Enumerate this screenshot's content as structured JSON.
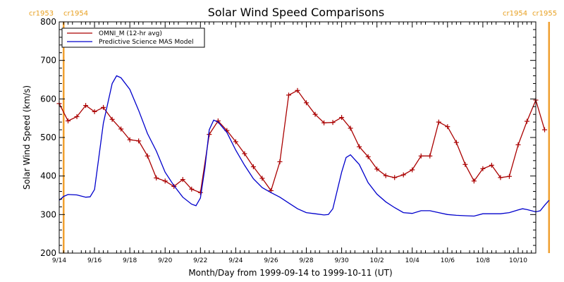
{
  "chart_data": {
    "type": "line",
    "title": "Solar Wind Speed Comparisons",
    "xlabel": "Month/Day from 1999-09-14 to 1999-10-11 (UT)",
    "ylabel": "Solar Wind Speed (km/s)",
    "xlim": [
      "1999-09-14",
      "1999-10-11"
    ],
    "ylim": [
      200,
      800
    ],
    "yticks": [
      200,
      300,
      400,
      500,
      600,
      700,
      800
    ],
    "xtick_labels": [
      "9/14",
      "9/16",
      "9/18",
      "9/20",
      "9/22",
      "9/24",
      "9/26",
      "9/28",
      "9/30",
      "10/2",
      "10/4",
      "10/6",
      "10/8",
      "10/10"
    ],
    "xtick_dates": [
      "1999-09-14",
      "1999-09-16",
      "1999-09-18",
      "1999-09-20",
      "1999-09-22",
      "1999-09-24",
      "1999-09-26",
      "1999-09-28",
      "1999-09-30",
      "1999-10-02",
      "1999-10-04",
      "1999-10-06",
      "1999-10-08",
      "1999-10-10"
    ],
    "legend_position": "top-left",
    "carrington_markers": [
      {
        "date": "1999-09-14 06:00",
        "label_left": "cr1953",
        "label_right": "cr1954",
        "color": "#f0a030"
      },
      {
        "date": "1999-10-11 18:00",
        "label_left": "cr1954",
        "label_right": "cr1955",
        "color": "#f0a030"
      }
    ],
    "series": [
      {
        "name": "OMNI_M (12-hr avg)",
        "color": "#aa0000",
        "marker": "plus",
        "points": [
          [
            "1999-09-14 00:00",
            588
          ],
          [
            "1999-09-14 12:00",
            543
          ],
          [
            "1999-09-15 00:00",
            554
          ],
          [
            "1999-09-15 12:00",
            583
          ],
          [
            "1999-09-16 00:00",
            567
          ],
          [
            "1999-09-16 12:00",
            578
          ],
          [
            "1999-09-17 00:00",
            547
          ],
          [
            "1999-09-17 12:00",
            522
          ],
          [
            "1999-09-18 00:00",
            494
          ],
          [
            "1999-09-18 12:00",
            491
          ],
          [
            "1999-09-19 00:00",
            452
          ],
          [
            "1999-09-19 12:00",
            395
          ],
          [
            "1999-09-20 00:00",
            387
          ],
          [
            "1999-09-20 12:00",
            373
          ],
          [
            "1999-09-21 00:00",
            391
          ],
          [
            "1999-09-21 12:00",
            366
          ],
          [
            "1999-09-22 00:00",
            357
          ],
          [
            "1999-09-22 12:00",
            508
          ],
          [
            "1999-09-23 00:00",
            543
          ],
          [
            "1999-09-23 12:00",
            518
          ],
          [
            "1999-09-24 00:00",
            489
          ],
          [
            "1999-09-24 12:00",
            458
          ],
          [
            "1999-09-25 00:00",
            424
          ],
          [
            "1999-09-25 12:00",
            394
          ],
          [
            "1999-09-26 00:00",
            362
          ],
          [
            "1999-09-26 12:00",
            437
          ],
          [
            "1999-09-27 00:00",
            610
          ],
          [
            "1999-09-27 12:00",
            622
          ],
          [
            "1999-09-28 00:00",
            590
          ],
          [
            "1999-09-28 12:00",
            560
          ],
          [
            "1999-09-29 00:00",
            538
          ],
          [
            "1999-09-29 12:00",
            539
          ],
          [
            "1999-09-30 00:00",
            552
          ],
          [
            "1999-09-30 12:00",
            524
          ],
          [
            "1999-10-01 00:00",
            476
          ],
          [
            "1999-10-01 12:00",
            450
          ],
          [
            "1999-10-02 00:00",
            418
          ],
          [
            "1999-10-02 12:00",
            401
          ],
          [
            "1999-10-03 00:00",
            396
          ],
          [
            "1999-10-03 12:00",
            403
          ],
          [
            "1999-10-04 00:00",
            416
          ],
          [
            "1999-10-04 12:00",
            452
          ],
          [
            "1999-10-05 00:00",
            452
          ],
          [
            "1999-10-05 12:00",
            540
          ],
          [
            "1999-10-06 00:00",
            528
          ],
          [
            "1999-10-06 12:00",
            487
          ],
          [
            "1999-10-07 00:00",
            430
          ],
          [
            "1999-10-07 12:00",
            387
          ],
          [
            "1999-10-08 00:00",
            419
          ],
          [
            "1999-10-08 12:00",
            428
          ],
          [
            "1999-10-09 00:00",
            396
          ],
          [
            "1999-10-09 12:00",
            399
          ],
          [
            "1999-10-10 00:00",
            481
          ],
          [
            "1999-10-10 12:00",
            542
          ],
          [
            "1999-10-11 00:00",
            597
          ],
          [
            "1999-10-11 12:00",
            520
          ]
        ]
      },
      {
        "name": "Predictive Science MAS Model",
        "color": "#0000cc",
        "marker": "none",
        "points": [
          [
            "1999-09-14 00:00",
            337
          ],
          [
            "1999-09-14 06:00",
            347
          ],
          [
            "1999-09-14 12:00",
            352
          ],
          [
            "1999-09-15 00:00",
            351
          ],
          [
            "1999-09-15 12:00",
            345
          ],
          [
            "1999-09-15 18:00",
            346
          ],
          [
            "1999-09-16 00:00",
            365
          ],
          [
            "1999-09-16 06:00",
            450
          ],
          [
            "1999-09-16 12:00",
            537
          ],
          [
            "1999-09-17 00:00",
            640
          ],
          [
            "1999-09-17 06:00",
            660
          ],
          [
            "1999-09-17 12:00",
            655
          ],
          [
            "1999-09-18 00:00",
            625
          ],
          [
            "1999-09-18 12:00",
            570
          ],
          [
            "1999-09-19 00:00",
            510
          ],
          [
            "1999-09-19 12:00",
            465
          ],
          [
            "1999-09-20 00:00",
            410
          ],
          [
            "1999-09-20 12:00",
            375
          ],
          [
            "1999-09-21 00:00",
            345
          ],
          [
            "1999-09-21 12:00",
            327
          ],
          [
            "1999-09-21 18:00",
            323
          ],
          [
            "1999-09-22 00:00",
            343
          ],
          [
            "1999-09-22 06:00",
            420
          ],
          [
            "1999-09-22 12:00",
            520
          ],
          [
            "1999-09-22 18:00",
            545
          ],
          [
            "1999-09-23 00:00",
            540
          ],
          [
            "1999-09-23 12:00",
            513
          ],
          [
            "1999-09-24 00:00",
            467
          ],
          [
            "1999-09-24 12:00",
            428
          ],
          [
            "1999-09-25 00:00",
            393
          ],
          [
            "1999-09-25 12:00",
            370
          ],
          [
            "1999-09-26 00:00",
            357
          ],
          [
            "1999-09-26 12:00",
            345
          ],
          [
            "1999-09-27 00:00",
            330
          ],
          [
            "1999-09-27 12:00",
            315
          ],
          [
            "1999-09-28 00:00",
            305
          ],
          [
            "1999-09-28 12:00",
            302
          ],
          [
            "1999-09-29 00:00",
            299
          ],
          [
            "1999-09-29 06:00",
            300
          ],
          [
            "1999-09-29 12:00",
            315
          ],
          [
            "1999-09-30 00:00",
            410
          ],
          [
            "1999-09-30 06:00",
            448
          ],
          [
            "1999-09-30 12:00",
            455
          ],
          [
            "1999-10-01 00:00",
            430
          ],
          [
            "1999-10-01 12:00",
            383
          ],
          [
            "1999-10-02 00:00",
            353
          ],
          [
            "1999-10-02 12:00",
            333
          ],
          [
            "1999-10-03 00:00",
            318
          ],
          [
            "1999-10-03 12:00",
            305
          ],
          [
            "1999-10-04 00:00",
            303
          ],
          [
            "1999-10-04 12:00",
            310
          ],
          [
            "1999-10-05 00:00",
            310
          ],
          [
            "1999-10-05 12:00",
            305
          ],
          [
            "1999-10-06 00:00",
            300
          ],
          [
            "1999-10-06 12:00",
            298
          ],
          [
            "1999-10-07 00:00",
            297
          ],
          [
            "1999-10-07 12:00",
            296
          ],
          [
            "1999-10-08 00:00",
            302
          ],
          [
            "1999-10-08 12:00",
            302
          ],
          [
            "1999-10-09 00:00",
            302
          ],
          [
            "1999-10-09 12:00",
            305
          ],
          [
            "1999-10-10 00:00",
            312
          ],
          [
            "1999-10-10 06:00",
            315
          ],
          [
            "1999-10-10 12:00",
            313
          ],
          [
            "1999-10-11 00:00",
            307
          ],
          [
            "1999-10-11 06:00",
            310
          ],
          [
            "1999-10-11 12:00",
            324
          ],
          [
            "1999-10-11 18:00",
            337
          ]
        ]
      }
    ]
  }
}
